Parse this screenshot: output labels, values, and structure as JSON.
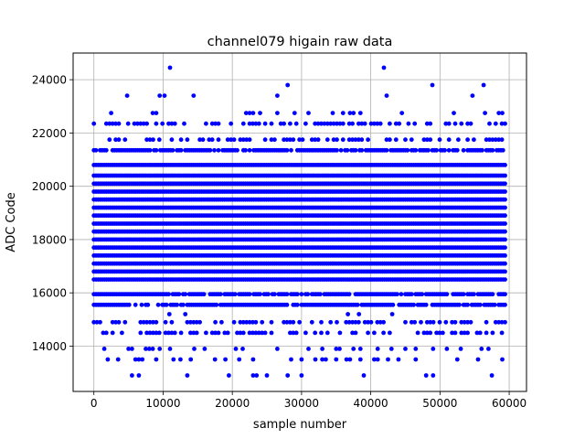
{
  "chart_data": {
    "type": "scatter",
    "title": "channel079 higain raw data",
    "xlabel": "sample number",
    "ylabel": "ADC Code",
    "xlim": [
      -3000,
      62500
    ],
    "ylim": [
      12300,
      25000
    ],
    "x_ticks": [
      0,
      10000,
      20000,
      30000,
      40000,
      50000,
      60000
    ],
    "x_tick_labels": [
      "0",
      "10000",
      "20000",
      "30000",
      "40000",
      "50000",
      "60000"
    ],
    "y_ticks": [
      14000,
      16000,
      18000,
      20000,
      22000,
      24000
    ],
    "y_tick_labels": [
      "14000",
      "16000",
      "18000",
      "20000",
      "22000",
      "24000"
    ],
    "grid": true,
    "marker_color": "#0000ff",
    "sample_range": [
      0,
      59500
    ],
    "dense_levels": [
      16500,
      16800,
      17100,
      17400,
      17700,
      18000,
      18300,
      18600,
      18900,
      19200,
      19500,
      19800,
      20100,
      20400,
      20800
    ],
    "medium_levels": [
      15550,
      15950,
      21350
    ],
    "sparse_levels": [
      14900,
      14500,
      21750,
      22350
    ],
    "rare_levels": [
      13900,
      13500,
      12900,
      22750,
      23400,
      23800,
      24450
    ],
    "outlier_points": [
      {
        "x": 4800,
        "y": 23400
      },
      {
        "x": 9500,
        "y": 23400
      },
      {
        "x": 10200,
        "y": 23400
      },
      {
        "x": 11000,
        "y": 24450
      },
      {
        "x": 14400,
        "y": 23400
      },
      {
        "x": 26500,
        "y": 23400
      },
      {
        "x": 28000,
        "y": 23800
      },
      {
        "x": 41900,
        "y": 24450
      },
      {
        "x": 42300,
        "y": 23400
      },
      {
        "x": 48900,
        "y": 23800
      },
      {
        "x": 54700,
        "y": 23400
      },
      {
        "x": 56300,
        "y": 23800
      },
      {
        "x": 10900,
        "y": 15200
      },
      {
        "x": 13200,
        "y": 15200
      },
      {
        "x": 36700,
        "y": 15200
      },
      {
        "x": 38300,
        "y": 15200
      },
      {
        "x": 43100,
        "y": 15200
      }
    ]
  }
}
